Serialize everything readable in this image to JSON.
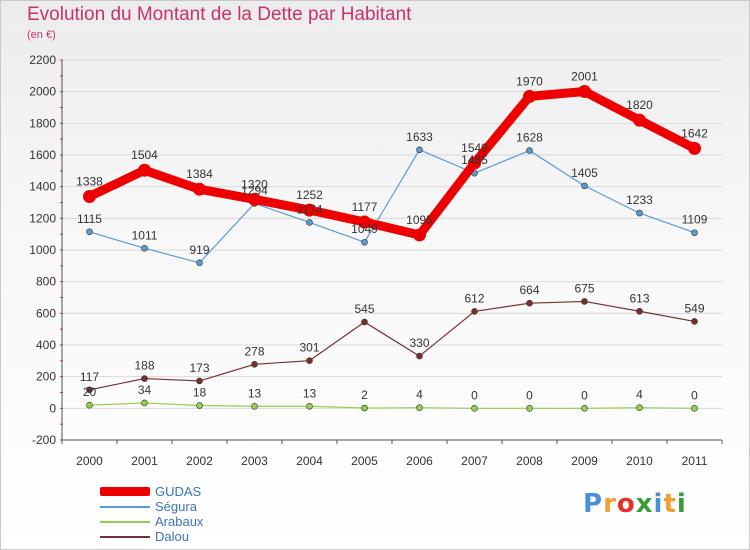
{
  "page": {
    "title": "Evolution du Montant de la Dette par Habitant",
    "subtitle": "(en €)"
  },
  "colors": {
    "title": "#c8326e",
    "axis_text": "#333333",
    "grid": "#d9d9d9",
    "legend_text": "#3b73b9"
  },
  "logo": {
    "letters": [
      {
        "char": "P",
        "color": "#4a90d9"
      },
      {
        "char": "r",
        "color": "#f0a030"
      },
      {
        "char": "o",
        "color": "#e8302a"
      },
      {
        "char": "x",
        "color": "#3a9b3a"
      },
      {
        "char": "i",
        "color": "#4a90d9"
      },
      {
        "char": "t",
        "color": "#f0a030"
      },
      {
        "char": "i",
        "color": "#3a9b3a"
      }
    ]
  },
  "chart_data": {
    "type": "line",
    "title": "Evolution du Montant de la Dette par Habitant",
    "subtitle": "(en €)",
    "xlabel": "",
    "ylabel": "",
    "categories": [
      "2000",
      "2001",
      "2002",
      "2003",
      "2004",
      "2005",
      "2006",
      "2007",
      "2008",
      "2009",
      "2010",
      "2011"
    ],
    "ylim": [
      -200,
      2200
    ],
    "yticks": [
      "-200",
      "0",
      "200",
      "400",
      "600",
      "800",
      "1000",
      "1200",
      "1400",
      "1600",
      "1800",
      "2000",
      "2200"
    ],
    "grid": "horizontal",
    "legend_position": "bottom-left",
    "series": [
      {
        "name": "GUDAS",
        "color": "#ee0000",
        "style": "thick",
        "values": [
          1338,
          1504,
          1384,
          1320,
          1252,
          1177,
          1095,
          1549,
          1970,
          2001,
          1820,
          1642
        ],
        "labels": [
          "1338",
          "1504",
          "1384",
          "1320",
          "1252",
          "1177",
          "1095",
          "1549",
          "1970",
          "2001",
          "1820",
          "1642"
        ]
      },
      {
        "name": "Ségura",
        "color": "#5b9bd5",
        "style": "thin",
        "values": [
          1115,
          1011,
          919,
          1294,
          1174,
          1049,
          1633,
          1485,
          1628,
          1405,
          1233,
          1109
        ],
        "labels": [
          "1115",
          "1011",
          "919",
          "1294",
          "1174",
          "1049",
          "1633",
          "1485",
          "1628",
          "1405",
          "1233",
          "1109"
        ]
      },
      {
        "name": "Arabaux",
        "color": "#92d050",
        "style": "thin",
        "values": [
          20,
          34,
          18,
          13,
          13,
          2,
          4,
          0,
          0,
          0,
          4,
          0
        ],
        "labels": [
          "20",
          "34",
          "18",
          "13",
          "13",
          "2",
          "4",
          "0",
          "0",
          "0",
          "4",
          "0"
        ]
      },
      {
        "name": "Dalou",
        "color": "#7a2e2e",
        "style": "thin",
        "values": [
          117,
          188,
          173,
          278,
          301,
          545,
          330,
          612,
          664,
          675,
          613,
          549
        ],
        "labels": [
          "117",
          "188",
          "173",
          "278",
          "301",
          "545",
          "330",
          "612",
          "664",
          "675",
          "613",
          "549"
        ]
      }
    ]
  }
}
